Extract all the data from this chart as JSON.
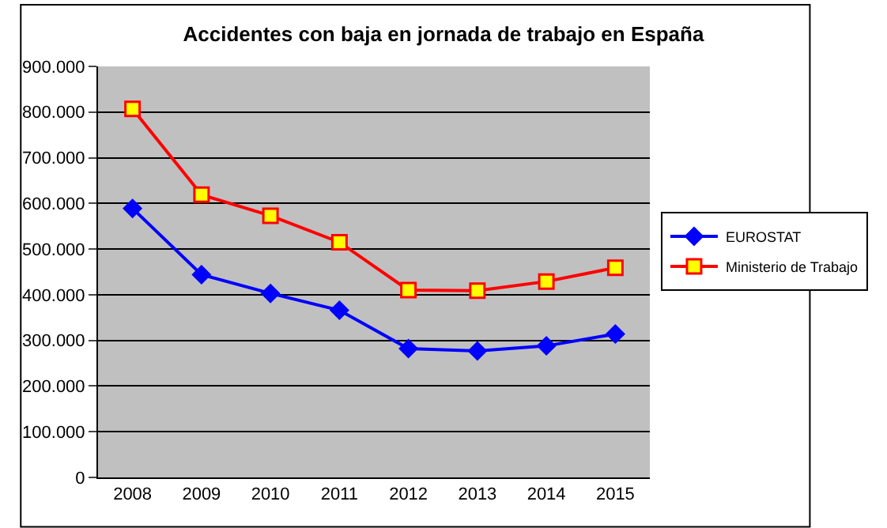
{
  "chart_data": {
    "type": "line",
    "title": "Accidentes con baja en jornada de trabajo en España",
    "categories": [
      "2008",
      "2009",
      "2010",
      "2011",
      "2012",
      "2013",
      "2014",
      "2015"
    ],
    "series": [
      {
        "name": "EUROSTAT",
        "color": "#0000ff",
        "marker": "diamond",
        "values": [
          589000,
          444000,
          403000,
          366000,
          282000,
          277000,
          288000,
          314000
        ]
      },
      {
        "name": "Ministerio de Trabajo",
        "color": "#ff0000",
        "marker": "square",
        "values": [
          807000,
          619000,
          573000,
          515000,
          410000,
          409000,
          429000,
          459000
        ]
      }
    ],
    "ylim": [
      0,
      900000
    ],
    "yticks": [
      0,
      {
        "value": 100000,
        "label": "100.000"
      },
      {
        "value": 200000,
        "label": "200.000"
      },
      {
        "value": 300000,
        "label": "300.000"
      },
      {
        "value": 400000,
        "label": "400.000"
      },
      {
        "value": 500000,
        "label": "500.000"
      },
      {
        "value": 600000,
        "label": "600.000"
      },
      {
        "value": 700000,
        "label": "700.000"
      },
      {
        "value": 800000,
        "label": "800.000"
      },
      {
        "value": 900000,
        "label": "900.000"
      }
    ],
    "grid": "y",
    "legend": "right"
  }
}
